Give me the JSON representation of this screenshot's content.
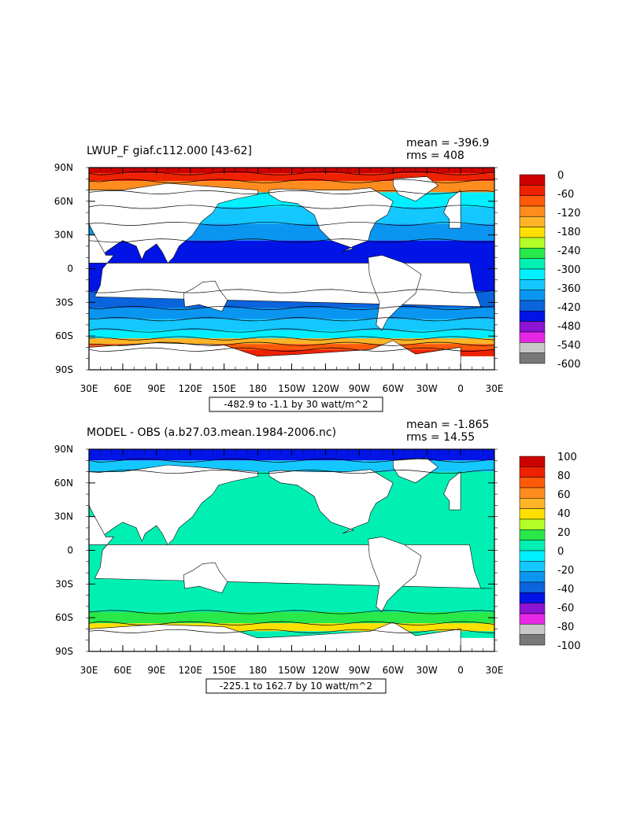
{
  "chart_data": [
    {
      "type": "heatmap",
      "title": "LWUP_F giaf.c112.000 [43-62]",
      "stats": {
        "mean": "mean = -396.9",
        "rms": "rms = 408"
      },
      "range_note": "-482.9 to -1.1 by 30 watt/m^2",
      "x_ticks": [
        "30E",
        "60E",
        "90E",
        "120E",
        "150E",
        "180",
        "150W",
        "120W",
        "90W",
        "60W",
        "30W",
        "0",
        "30E"
      ],
      "y_ticks": [
        "90N",
        "60N",
        "30N",
        "0",
        "30S",
        "60S",
        "90S"
      ],
      "colorbar": {
        "labels": [
          "0",
          "-60",
          "-120",
          "-180",
          "-240",
          "-300",
          "-360",
          "-420",
          "-480",
          "-540",
          "-600"
        ],
        "colors": [
          "#cc0000",
          "#ee2200",
          "#ff5a0a",
          "#ff8c1e",
          "#ffb428",
          "#ffe000",
          "#b4ff28",
          "#28e84a",
          "#00f0b4",
          "#00f0ff",
          "#14c8ff",
          "#0a96f0",
          "#0a64dc",
          "#0014e6",
          "#8c14d2",
          "#e628e6",
          "#c8c8c8",
          "#787878"
        ]
      },
      "zones": [
        {
          "lat": [
            85,
            90
          ],
          "color": "#cc0000"
        },
        {
          "lat": [
            78,
            85
          ],
          "color": "#ee2200"
        },
        {
          "lat": [
            68,
            78
          ],
          "color": "#ff8c1e"
        },
        {
          "lat": [
            55,
            68
          ],
          "color": "#00f0ff"
        },
        {
          "lat": [
            40,
            55
          ],
          "color": "#14c8ff"
        },
        {
          "lat": [
            25,
            40
          ],
          "color": "#0a96f0"
        },
        {
          "lat": [
            -20,
            25
          ],
          "color": "#0014e6"
        },
        {
          "lat": [
            -35,
            -20
          ],
          "color": "#0a64dc"
        },
        {
          "lat": [
            -45,
            -35
          ],
          "color": "#0a96f0"
        },
        {
          "lat": [
            -55,
            -45
          ],
          "color": "#14c8ff"
        },
        {
          "lat": [
            -62,
            -55
          ],
          "color": "#00f0ff"
        },
        {
          "lat": [
            -67,
            -62
          ],
          "color": "#ffb428"
        },
        {
          "lat": [
            -72,
            -67
          ],
          "color": "#ff5a0a"
        },
        {
          "lat": [
            -78,
            -72
          ],
          "color": "#ee2200"
        }
      ]
    },
    {
      "type": "heatmap",
      "title": "MODEL - OBS (a.b27.03.mean.1984-2006.nc)",
      "stats": {
        "mean": "mean = -1.865",
        "rms": "rms = 14.55"
      },
      "range_note": "-225.1 to 162.7 by 10 watt/m^2",
      "x_ticks": [
        "30E",
        "60E",
        "90E",
        "120E",
        "150E",
        "180",
        "150W",
        "120W",
        "90W",
        "60W",
        "30W",
        "0",
        "30E"
      ],
      "y_ticks": [
        "90N",
        "60N",
        "30N",
        "0",
        "30S",
        "60S",
        "90S"
      ],
      "colorbar": {
        "labels": [
          "100",
          "80",
          "60",
          "40",
          "20",
          "0",
          "-20",
          "-40",
          "-60",
          "-80",
          "-100"
        ],
        "colors": [
          "#cc0000",
          "#ee2200",
          "#ff5a0a",
          "#ff8c1e",
          "#ffb428",
          "#ffe000",
          "#b4ff28",
          "#28e84a",
          "#00f0b4",
          "#00f0ff",
          "#14c8ff",
          "#0a96f0",
          "#0a64dc",
          "#0014e6",
          "#8c14d2",
          "#e628e6",
          "#c8c8c8",
          "#787878"
        ]
      },
      "zones": [
        {
          "lat": [
            80,
            90
          ],
          "color": "#0014e6"
        },
        {
          "lat": [
            70,
            80
          ],
          "color": "#14c8ff"
        },
        {
          "lat": [
            -55,
            70
          ],
          "color": "#00f0b4"
        },
        {
          "lat": [
            -65,
            -55
          ],
          "color": "#28e84a"
        },
        {
          "lat": [
            -72,
            -65
          ],
          "color": "#ffe000"
        },
        {
          "lat": [
            -78,
            -72
          ],
          "color": "#00f0b4"
        }
      ]
    }
  ]
}
